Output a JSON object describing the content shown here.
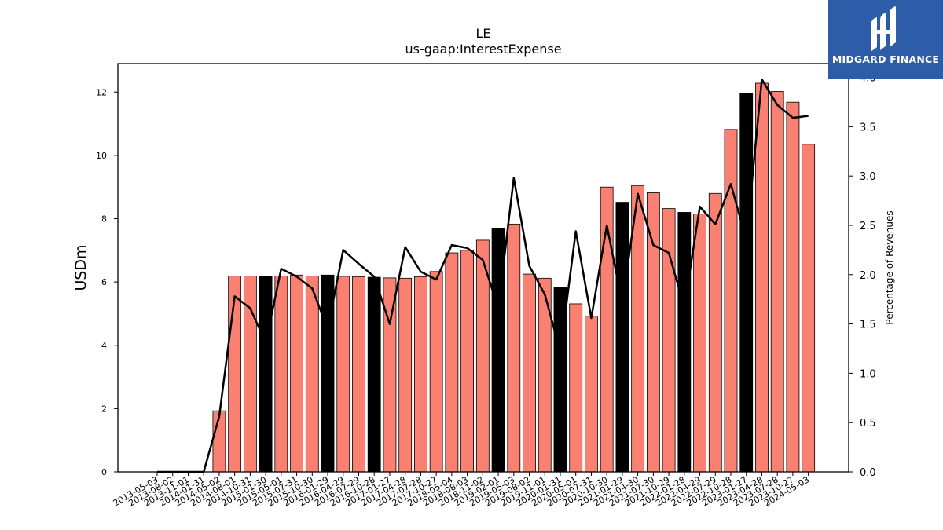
{
  "chart_data": {
    "type": "bar",
    "title": "LE",
    "subtitle": "us-gaap:InterestExpense",
    "ylabel": "USDm",
    "y2label": "Percentage of Revenues",
    "ylim": [
      0,
      12.9
    ],
    "y2lim": [
      0,
      4.14
    ],
    "yticks": [
      "0",
      "2",
      "4",
      "6",
      "8",
      "10",
      "12"
    ],
    "y2ticks": [
      "0.0",
      "0.5",
      "1.0",
      "1.5",
      "2.0",
      "2.5",
      "3.0",
      "3.5",
      "4.0"
    ],
    "colors": {
      "quarter": "#fa8072",
      "annual": "#000000",
      "line": "#000000"
    },
    "categories": [
      "2013-05-03",
      "2013-08-02",
      "2013-11-01",
      "2014-01-31",
      "2014-05-02",
      "2014-08-01",
      "2014-10-31",
      "2015-01-30",
      "2015-05-01",
      "2015-07-31",
      "2015-10-30",
      "2016-01-29",
      "2016-04-29",
      "2016-07-29",
      "2016-10-28",
      "2017-01-27",
      "2017-04-28",
      "2017-07-28",
      "2017-10-27",
      "2018-05-04",
      "2018-08-03",
      "2018-11-02",
      "2019-02-01",
      "2019-05-03",
      "2019-08-02",
      "2019-11-01",
      "2020-01-31",
      "2020-05-01",
      "2020-07-31",
      "2020-10-30",
      "2021-01-29",
      "2021-04-30",
      "2021-07-30",
      "2021-10-29",
      "2022-01-28",
      "2022-04-29",
      "2022-07-29",
      "2022-10-28",
      "2023-01-27",
      "2023-04-28",
      "2023-07-28",
      "2023-10-27",
      "2024-05-03"
    ],
    "series": [
      {
        "kind": "bar",
        "values": [
          0,
          0,
          0,
          0,
          1.93,
          6.19,
          6.19,
          6.17,
          6.19,
          6.22,
          6.19,
          6.22,
          6.18,
          6.17,
          6.15,
          6.13,
          6.12,
          6.17,
          6.33,
          6.92,
          7.0,
          7.32,
          7.69,
          7.83,
          6.25,
          6.12,
          5.82,
          5.31,
          4.92,
          9.0,
          8.52,
          9.05,
          8.82,
          8.32,
          8.2,
          8.15,
          8.8,
          10.82,
          11.95,
          12.28,
          12.02,
          11.68,
          10.35
        ],
        "annual": [
          false,
          false,
          false,
          false,
          false,
          false,
          false,
          true,
          false,
          false,
          false,
          true,
          false,
          false,
          true,
          false,
          false,
          false,
          false,
          false,
          false,
          false,
          true,
          false,
          false,
          false,
          true,
          false,
          false,
          false,
          true,
          false,
          false,
          false,
          true,
          false,
          false,
          false,
          true,
          false,
          false,
          false,
          false
        ]
      },
      {
        "kind": "line",
        "axis": "right",
        "values": [
          0,
          0,
          0,
          0,
          0.56,
          1.78,
          1.66,
          1.31,
          2.06,
          1.98,
          1.86,
          1.45,
          2.25,
          2.11,
          1.98,
          1.5,
          2.28,
          2.03,
          1.95,
          2.3,
          2.27,
          2.15,
          1.66,
          2.98,
          2.09,
          1.8,
          1.22,
          2.44,
          1.56,
          2.5,
          1.71,
          2.82,
          2.3,
          2.22,
          1.67,
          2.69,
          2.51,
          2.92,
          2.35,
          3.98,
          3.72,
          3.59,
          3.61
        ]
      }
    ]
  },
  "logo": {
    "text": "MIDGARD FINANCE"
  }
}
